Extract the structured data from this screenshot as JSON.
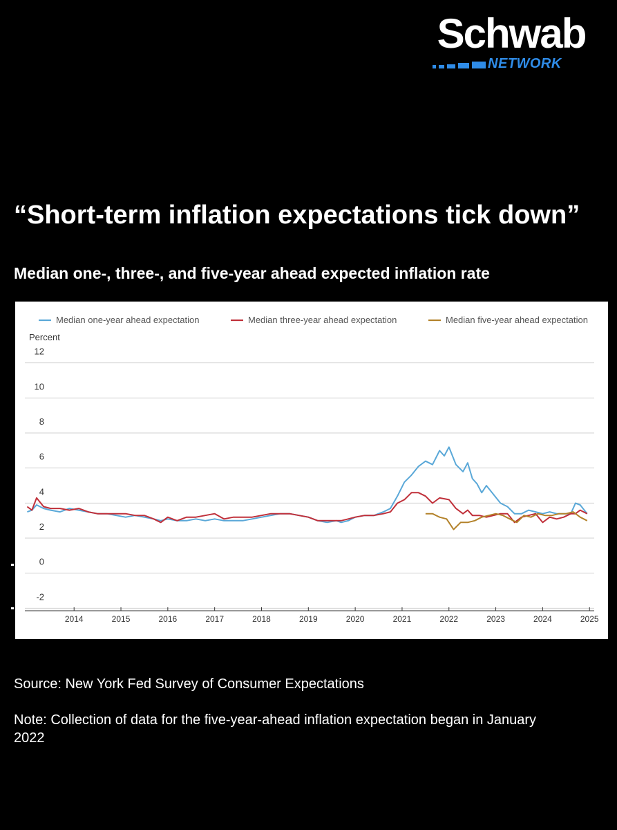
{
  "brand": {
    "name": "Schwab",
    "subline": "NETWORK",
    "accent_color": "#2f8ce8"
  },
  "headline": "“Short-term inflation expectations tick down”",
  "subhead": "Median one-, three-, and five-year ahead expected inflation rate",
  "source": "Source: New York Fed Survey of Consumer Expectations",
  "note": "Note: Collection of data for the five-year-ahead inflation expectation began in January 2022",
  "chart_data": {
    "type": "line",
    "title": "",
    "xlabel": "",
    "ylabel": "Percent",
    "ylim": [
      -2.5,
      12.5
    ],
    "xlim": [
      2013.45,
      2025.6
    ],
    "yticks": [
      12,
      10,
      8,
      6,
      4,
      2,
      0,
      -2
    ],
    "xticks": [
      "2014",
      "2015",
      "2016",
      "2017",
      "2018",
      "2019",
      "2020",
      "2021",
      "2022",
      "2023",
      "2024",
      "2025"
    ],
    "grid": "horizontal",
    "legend_position": "top",
    "series": [
      {
        "name": "Median one-year ahead expectation",
        "color": "#5aa8d8",
        "points": [
          [
            2013.5,
            3.1
          ],
          [
            2013.6,
            3.2
          ],
          [
            2013.7,
            3.5
          ],
          [
            2013.85,
            3.3
          ],
          [
            2014.0,
            3.2
          ],
          [
            2014.2,
            3.1
          ],
          [
            2014.4,
            3.3
          ],
          [
            2014.6,
            3.2
          ],
          [
            2014.8,
            3.1
          ],
          [
            2015.0,
            3.0
          ],
          [
            2015.2,
            3.0
          ],
          [
            2015.4,
            2.9
          ],
          [
            2015.6,
            2.8
          ],
          [
            2015.8,
            2.9
          ],
          [
            2016.0,
            2.8
          ],
          [
            2016.2,
            2.7
          ],
          [
            2016.35,
            2.6
          ],
          [
            2016.5,
            2.7
          ],
          [
            2016.7,
            2.6
          ],
          [
            2016.9,
            2.6
          ],
          [
            2017.1,
            2.7
          ],
          [
            2017.3,
            2.6
          ],
          [
            2017.5,
            2.7
          ],
          [
            2017.7,
            2.6
          ],
          [
            2017.9,
            2.6
          ],
          [
            2018.1,
            2.6
          ],
          [
            2018.3,
            2.7
          ],
          [
            2018.5,
            2.8
          ],
          [
            2018.7,
            2.9
          ],
          [
            2018.9,
            3.0
          ],
          [
            2019.1,
            3.0
          ],
          [
            2019.3,
            2.9
          ],
          [
            2019.5,
            2.8
          ],
          [
            2019.7,
            2.6
          ],
          [
            2019.9,
            2.5
          ],
          [
            2020.1,
            2.6
          ],
          [
            2020.2,
            2.5
          ],
          [
            2020.35,
            2.6
          ],
          [
            2020.5,
            2.8
          ],
          [
            2020.7,
            2.9
          ],
          [
            2020.9,
            2.9
          ],
          [
            2021.1,
            3.1
          ],
          [
            2021.25,
            3.3
          ],
          [
            2021.4,
            4.0
          ],
          [
            2021.55,
            4.8
          ],
          [
            2021.7,
            5.2
          ],
          [
            2021.85,
            5.7
          ],
          [
            2022.0,
            6.0
          ],
          [
            2022.15,
            5.8
          ],
          [
            2022.3,
            6.6
          ],
          [
            2022.4,
            6.3
          ],
          [
            2022.5,
            6.8
          ],
          [
            2022.65,
            5.8
          ],
          [
            2022.8,
            5.4
          ],
          [
            2022.9,
            5.9
          ],
          [
            2023.0,
            5.0
          ],
          [
            2023.1,
            4.7
          ],
          [
            2023.2,
            4.2
          ],
          [
            2023.3,
            4.6
          ],
          [
            2023.45,
            4.1
          ],
          [
            2023.6,
            3.6
          ],
          [
            2023.75,
            3.4
          ],
          [
            2023.9,
            3.0
          ],
          [
            2024.05,
            3.0
          ],
          [
            2024.2,
            3.2
          ],
          [
            2024.35,
            3.1
          ],
          [
            2024.5,
            3.0
          ],
          [
            2024.65,
            3.1
          ],
          [
            2024.8,
            3.0
          ],
          [
            2024.95,
            3.0
          ],
          [
            2025.1,
            3.0
          ],
          [
            2025.2,
            3.6
          ],
          [
            2025.3,
            3.5
          ],
          [
            2025.45,
            3.0
          ]
        ]
      },
      {
        "name": "Median three-year ahead expectation",
        "color": "#c0303a",
        "points": [
          [
            2013.5,
            3.4
          ],
          [
            2013.6,
            3.2
          ],
          [
            2013.7,
            3.9
          ],
          [
            2013.85,
            3.4
          ],
          [
            2014.0,
            3.3
          ],
          [
            2014.2,
            3.3
          ],
          [
            2014.4,
            3.2
          ],
          [
            2014.6,
            3.3
          ],
          [
            2014.8,
            3.1
          ],
          [
            2015.0,
            3.0
          ],
          [
            2015.2,
            3.0
          ],
          [
            2015.4,
            3.0
          ],
          [
            2015.6,
            3.0
          ],
          [
            2015.8,
            2.9
          ],
          [
            2016.0,
            2.9
          ],
          [
            2016.2,
            2.7
          ],
          [
            2016.35,
            2.5
          ],
          [
            2016.5,
            2.8
          ],
          [
            2016.7,
            2.6
          ],
          [
            2016.9,
            2.8
          ],
          [
            2017.1,
            2.8
          ],
          [
            2017.3,
            2.9
          ],
          [
            2017.5,
            3.0
          ],
          [
            2017.7,
            2.7
          ],
          [
            2017.9,
            2.8
          ],
          [
            2018.1,
            2.8
          ],
          [
            2018.3,
            2.8
          ],
          [
            2018.5,
            2.9
          ],
          [
            2018.7,
            3.0
          ],
          [
            2018.9,
            3.0
          ],
          [
            2019.1,
            3.0
          ],
          [
            2019.3,
            2.9
          ],
          [
            2019.5,
            2.8
          ],
          [
            2019.7,
            2.6
          ],
          [
            2019.9,
            2.6
          ],
          [
            2020.1,
            2.6
          ],
          [
            2020.2,
            2.6
          ],
          [
            2020.35,
            2.7
          ],
          [
            2020.5,
            2.8
          ],
          [
            2020.7,
            2.9
          ],
          [
            2020.9,
            2.9
          ],
          [
            2021.1,
            3.0
          ],
          [
            2021.25,
            3.1
          ],
          [
            2021.4,
            3.6
          ],
          [
            2021.55,
            3.8
          ],
          [
            2021.7,
            4.2
          ],
          [
            2021.85,
            4.2
          ],
          [
            2022.0,
            4.0
          ],
          [
            2022.15,
            3.6
          ],
          [
            2022.3,
            3.9
          ],
          [
            2022.5,
            3.8
          ],
          [
            2022.65,
            3.3
          ],
          [
            2022.8,
            3.0
          ],
          [
            2022.9,
            3.2
          ],
          [
            2023.0,
            2.9
          ],
          [
            2023.15,
            2.9
          ],
          [
            2023.3,
            2.8
          ],
          [
            2023.45,
            2.9
          ],
          [
            2023.6,
            3.0
          ],
          [
            2023.75,
            3.0
          ],
          [
            2023.9,
            2.5
          ],
          [
            2024.05,
            2.8
          ],
          [
            2024.2,
            2.9
          ],
          [
            2024.35,
            3.0
          ],
          [
            2024.5,
            2.5
          ],
          [
            2024.65,
            2.8
          ],
          [
            2024.8,
            2.7
          ],
          [
            2024.95,
            2.8
          ],
          [
            2025.1,
            3.0
          ],
          [
            2025.2,
            3.0
          ],
          [
            2025.3,
            3.2
          ],
          [
            2025.45,
            3.0
          ]
        ]
      },
      {
        "name": "Median five-year ahead expectation",
        "color": "#b3822a",
        "points": [
          [
            2022.0,
            3.0
          ],
          [
            2022.15,
            3.0
          ],
          [
            2022.3,
            2.8
          ],
          [
            2022.45,
            2.7
          ],
          [
            2022.6,
            2.1
          ],
          [
            2022.75,
            2.5
          ],
          [
            2022.9,
            2.5
          ],
          [
            2023.05,
            2.6
          ],
          [
            2023.2,
            2.8
          ],
          [
            2023.35,
            2.9
          ],
          [
            2023.5,
            3.0
          ],
          [
            2023.65,
            2.9
          ],
          [
            2023.8,
            2.7
          ],
          [
            2023.95,
            2.5
          ],
          [
            2024.1,
            2.9
          ],
          [
            2024.25,
            2.8
          ],
          [
            2024.4,
            3.0
          ],
          [
            2024.55,
            2.9
          ],
          [
            2024.7,
            2.9
          ],
          [
            2024.85,
            3.0
          ],
          [
            2025.0,
            3.0
          ],
          [
            2025.15,
            3.1
          ],
          [
            2025.3,
            2.8
          ],
          [
            2025.45,
            2.6
          ]
        ]
      }
    ]
  }
}
